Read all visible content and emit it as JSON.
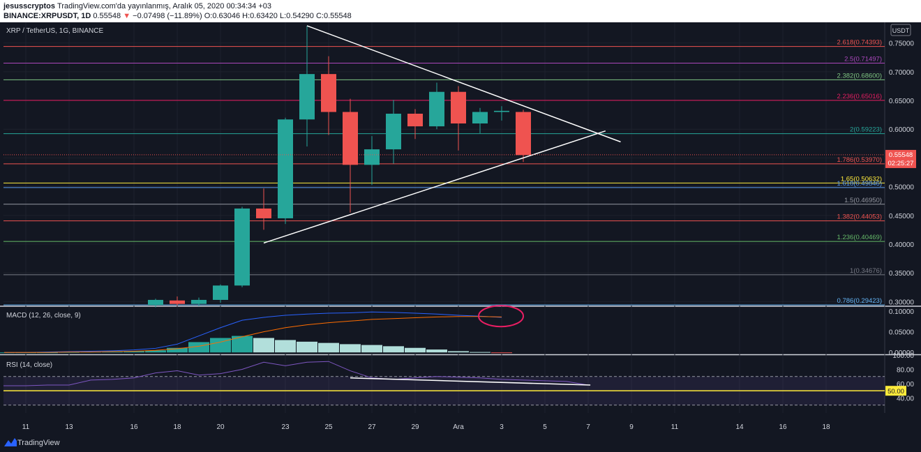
{
  "header": {
    "author": "jesusscryptos",
    "published": "TradingView.com'da yayınlanmış, Aralık 05, 2020 00:34:34 +03",
    "symbol": "BINANCE:XRPUSDT, 1D",
    "last": "0.55548",
    "change": "−0.07498 (−11.89%)",
    "o_label": "O:",
    "o": "0.63046",
    "h_label": "H:",
    "h": "0.63420",
    "l_label": "L:",
    "l": "0.54290",
    "c_label": "C:",
    "c": "0.55548"
  },
  "footer": {
    "brand": "TradingView",
    "logo_icon": "tradingview-logo-icon"
  },
  "colors": {
    "background": "#131722",
    "up": "#26a69a",
    "down": "#ef5350",
    "grid": "#1e222d",
    "macd": "#2962ff",
    "signal": "#ff6d00",
    "rsi": "#7e57c2"
  },
  "chart_data": [
    {
      "type": "candlestick",
      "title": "XRP / TetherUS, 1G, BINANCE",
      "currency": "USDT",
      "ylim": [
        0.292,
        0.786
      ],
      "yticks": [
        "0.75000",
        "0.70000",
        "0.65000",
        "0.60000",
        "0.55000",
        "0.50000",
        "0.45000",
        "0.40000",
        "0.35000",
        "0.30000"
      ],
      "ytick_values": [
        0.75,
        0.7,
        0.65,
        0.6,
        0.55,
        0.5,
        0.45,
        0.4,
        0.35,
        0.3
      ],
      "xticks": [
        "11",
        "13",
        "16",
        "18",
        "20",
        "23",
        "25",
        "27",
        "29",
        "Ara",
        "3",
        "5",
        "7",
        "9",
        "11",
        "14",
        "16",
        "18"
      ],
      "xtick_index": [
        -6,
        -4,
        -1,
        1,
        3,
        6,
        8,
        10,
        12,
        14,
        16,
        18,
        20,
        22,
        24,
        27,
        29,
        31
      ],
      "candles": [
        {
          "o": 0.294,
          "h": 0.305,
          "l": 0.29,
          "c": 0.303
        },
        {
          "o": 0.302,
          "h": 0.309,
          "l": 0.293,
          "c": 0.296
        },
        {
          "o": 0.296,
          "h": 0.307,
          "l": 0.292,
          "c": 0.303
        },
        {
          "o": 0.303,
          "h": 0.33,
          "l": 0.298,
          "c": 0.328
        },
        {
          "o": 0.328,
          "h": 0.465,
          "l": 0.325,
          "c": 0.462
        },
        {
          "o": 0.462,
          "h": 0.497,
          "l": 0.425,
          "c": 0.445
        },
        {
          "o": 0.445,
          "h": 0.62,
          "l": 0.435,
          "c": 0.617
        },
        {
          "o": 0.617,
          "h": 0.78,
          "l": 0.57,
          "c": 0.696
        },
        {
          "o": 0.696,
          "h": 0.727,
          "l": 0.59,
          "c": 0.63
        },
        {
          "o": 0.63,
          "h": 0.653,
          "l": 0.455,
          "c": 0.538
        },
        {
          "o": 0.538,
          "h": 0.588,
          "l": 0.503,
          "c": 0.565
        },
        {
          "o": 0.565,
          "h": 0.651,
          "l": 0.54,
          "c": 0.627
        },
        {
          "o": 0.627,
          "h": 0.635,
          "l": 0.583,
          "c": 0.605
        },
        {
          "o": 0.605,
          "h": 0.681,
          "l": 0.6,
          "c": 0.665
        },
        {
          "o": 0.665,
          "h": 0.675,
          "l": 0.563,
          "c": 0.61
        },
        {
          "o": 0.61,
          "h": 0.637,
          "l": 0.593,
          "c": 0.63
        },
        {
          "o": 0.63,
          "h": 0.64,
          "l": 0.615,
          "c": 0.632
        },
        {
          "o": 0.63,
          "h": 0.634,
          "l": 0.543,
          "c": 0.555
        }
      ],
      "fib_levels": [
        {
          "label": "2.618(0.74393)",
          "value": 0.74393,
          "color": "#ef5350"
        },
        {
          "label": "2.5(0.71497)",
          "value": 0.71497,
          "color": "#ab47bc"
        },
        {
          "label": "2.382(0.68600)",
          "value": 0.686,
          "color": "#81c784"
        },
        {
          "label": "2.236(0.65016)",
          "value": 0.65016,
          "color": "#e91e63"
        },
        {
          "label": "2(0.59223)",
          "value": 0.59223,
          "color": "#26a69a"
        },
        {
          "label": "1.786(0.53970)",
          "value": 0.5397,
          "color": "#ef5350"
        },
        {
          "label": "1.65(0.50632)",
          "value": 0.50632,
          "color": "#ffeb3b"
        },
        {
          "label": "1.618(0.49846)",
          "value": 0.49846,
          "color": "#5c9ded"
        },
        {
          "label": "1.5(0.46950)",
          "value": 0.4695,
          "color": "#9598a1"
        },
        {
          "label": "1.382(0.44053)",
          "value": 0.44053,
          "color": "#ef5350"
        },
        {
          "label": "1.236(0.40469)",
          "value": 0.40469,
          "color": "#66bb6a"
        },
        {
          "label": "1(0.34676)",
          "value": 0.34676,
          "color": "#787b86"
        },
        {
          "label": "0.786(0.29423)",
          "value": 0.29423,
          "color": "#64b5f6"
        }
      ],
      "trendlines": [
        {
          "from": [
            7,
            0.78
          ],
          "to": [
            21.5,
            0.578
          ],
          "color": "#ffffff"
        },
        {
          "from": [
            5,
            0.402
          ],
          "to": [
            20.8,
            0.597
          ],
          "color": "#ffffff"
        }
      ],
      "price_label": {
        "value": "0.55548",
        "countdown": "02:25:27",
        "y": 0.55548
      }
    },
    {
      "type": "line",
      "title": "MACD (12, 26, close, 9)",
      "ylim": [
        -0.003,
        0.112
      ],
      "yticks": [
        "0.10000",
        "0.05000",
        "0.00000"
      ],
      "ytick_values": [
        0.1,
        0.05,
        0.0
      ],
      "series": [
        {
          "values": [
            0.0,
            0.0,
            0.001,
            0.002,
            0.003,
            0.004,
            0.006,
            0.01,
            0.02,
            0.04,
            0.06,
            0.078,
            0.085,
            0.09,
            0.093,
            0.095,
            0.096,
            0.098,
            0.097,
            0.095,
            0.093,
            0.09,
            0.088,
            0.085
          ]
        },
        {
          "values": [
            0.0,
            0.0,
            0.0,
            0.001,
            0.001,
            0.002,
            0.003,
            0.005,
            0.009,
            0.015,
            0.025,
            0.038,
            0.05,
            0.06,
            0.067,
            0.072,
            0.076,
            0.08,
            0.082,
            0.084,
            0.086,
            0.087,
            0.087,
            0.086
          ]
        }
      ],
      "histogram": [
        0.0,
        0.0,
        0.0,
        0.001,
        0.002,
        0.002,
        0.003,
        0.005,
        0.011,
        0.025,
        0.035,
        0.04,
        0.035,
        0.03,
        0.026,
        0.023,
        0.02,
        0.018,
        0.015,
        0.011,
        0.007,
        0.003,
        0.001,
        -0.001
      ],
      "highlight": "ellipse"
    },
    {
      "type": "line",
      "title": "RSI (14, close)",
      "ylim": [
        19,
        100
      ],
      "yticks": [
        "100.00",
        "80.00",
        "60.00",
        "40.00"
      ],
      "ytick_values": [
        100,
        80,
        60,
        40
      ],
      "bands": [
        30,
        70
      ],
      "level": {
        "value": 50,
        "label": "50.00",
        "color": "#ffeb3b"
      },
      "series": [
        {
          "values": [
            57,
            57,
            58,
            58,
            65,
            66,
            68,
            75,
            78,
            72,
            74,
            80,
            90,
            85,
            90,
            91,
            78,
            68,
            66,
            68,
            70,
            69,
            68,
            66,
            65,
            64,
            63,
            58
          ]
        }
      ],
      "trendline": {
        "from": [
          9,
          68
        ],
        "to": [
          20.1,
          58
        ]
      }
    }
  ]
}
